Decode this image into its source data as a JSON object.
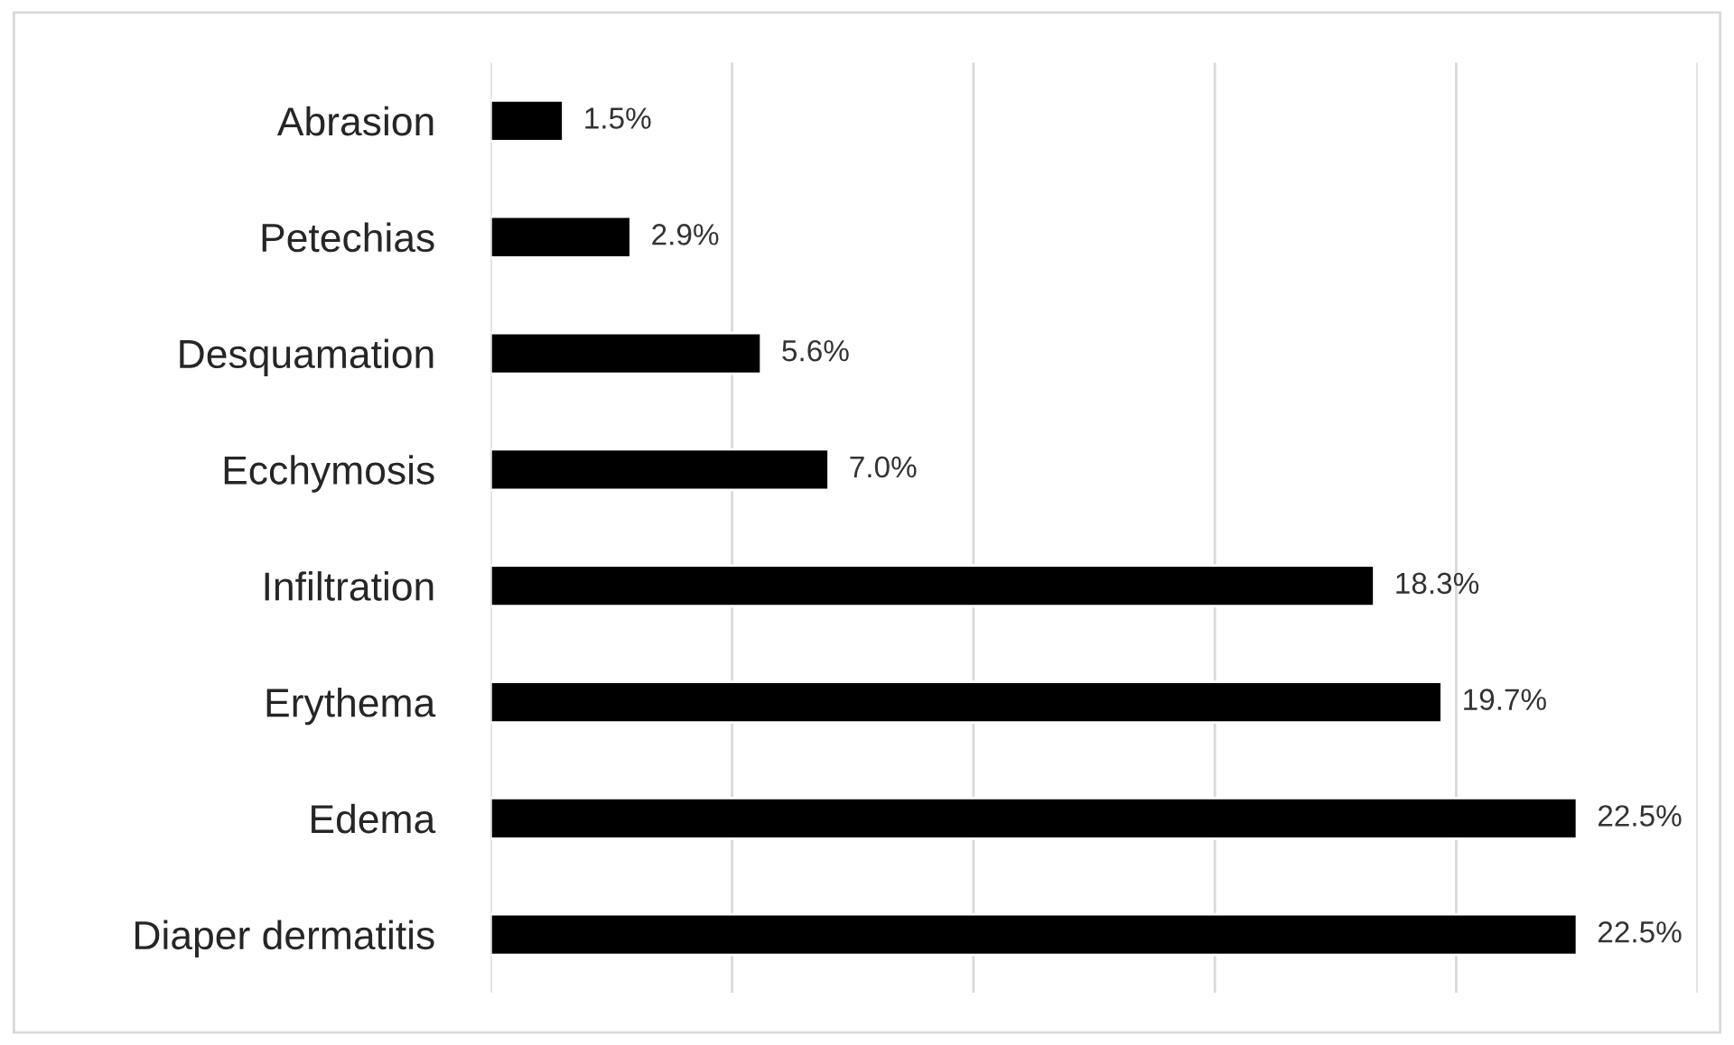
{
  "chart_data": {
    "type": "bar",
    "orientation": "horizontal",
    "categories": [
      "Abrasion",
      "Petechias",
      "Desquamation",
      "Ecchymosis",
      "Infiltration",
      "Erythema",
      "Edema",
      "Diaper dermatitis"
    ],
    "values": [
      1.5,
      2.9,
      5.6,
      7.0,
      18.3,
      19.7,
      22.5,
      22.5
    ],
    "value_labels": [
      "1.5%",
      "2.9%",
      "5.6%",
      "7.0%",
      "18.3%",
      "19.7%",
      "22.5%",
      "22.5%"
    ],
    "color": "#000000",
    "xlim": [
      0,
      25
    ],
    "xticks": [
      {
        "value": 0,
        "label": null
      },
      {
        "value": 5,
        "label": null
      },
      {
        "value": 10,
        "label": null
      },
      {
        "value": 15,
        "label": null
      },
      {
        "value": 20,
        "label": null
      },
      {
        "value": 25,
        "label": null
      }
    ],
    "grid": "x",
    "tick_labels": "y",
    "legend": false
  }
}
